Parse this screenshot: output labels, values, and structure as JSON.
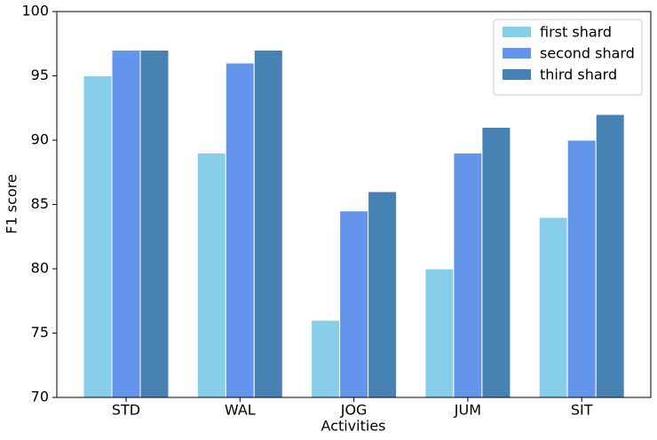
{
  "chart_data": {
    "type": "bar",
    "xlabel": "Activities",
    "ylabel": "F1 score",
    "categories": [
      "STD",
      "WAL",
      "JOG",
      "JUM",
      "SIT"
    ],
    "series": [
      {
        "name": "first shard",
        "color": "#87ceeb",
        "values": [
          95,
          89,
          76,
          80,
          84
        ]
      },
      {
        "name": "second shard",
        "color": "#6495ed",
        "values": [
          97,
          96,
          84.5,
          89,
          90
        ]
      },
      {
        "name": "third shard",
        "color": "#4682b4",
        "values": [
          97,
          97,
          86,
          91,
          92
        ]
      }
    ],
    "ylim": [
      70,
      100
    ],
    "yticks": [
      70,
      75,
      80,
      85,
      90,
      95,
      100
    ],
    "grid": false,
    "legend": "upper right"
  }
}
